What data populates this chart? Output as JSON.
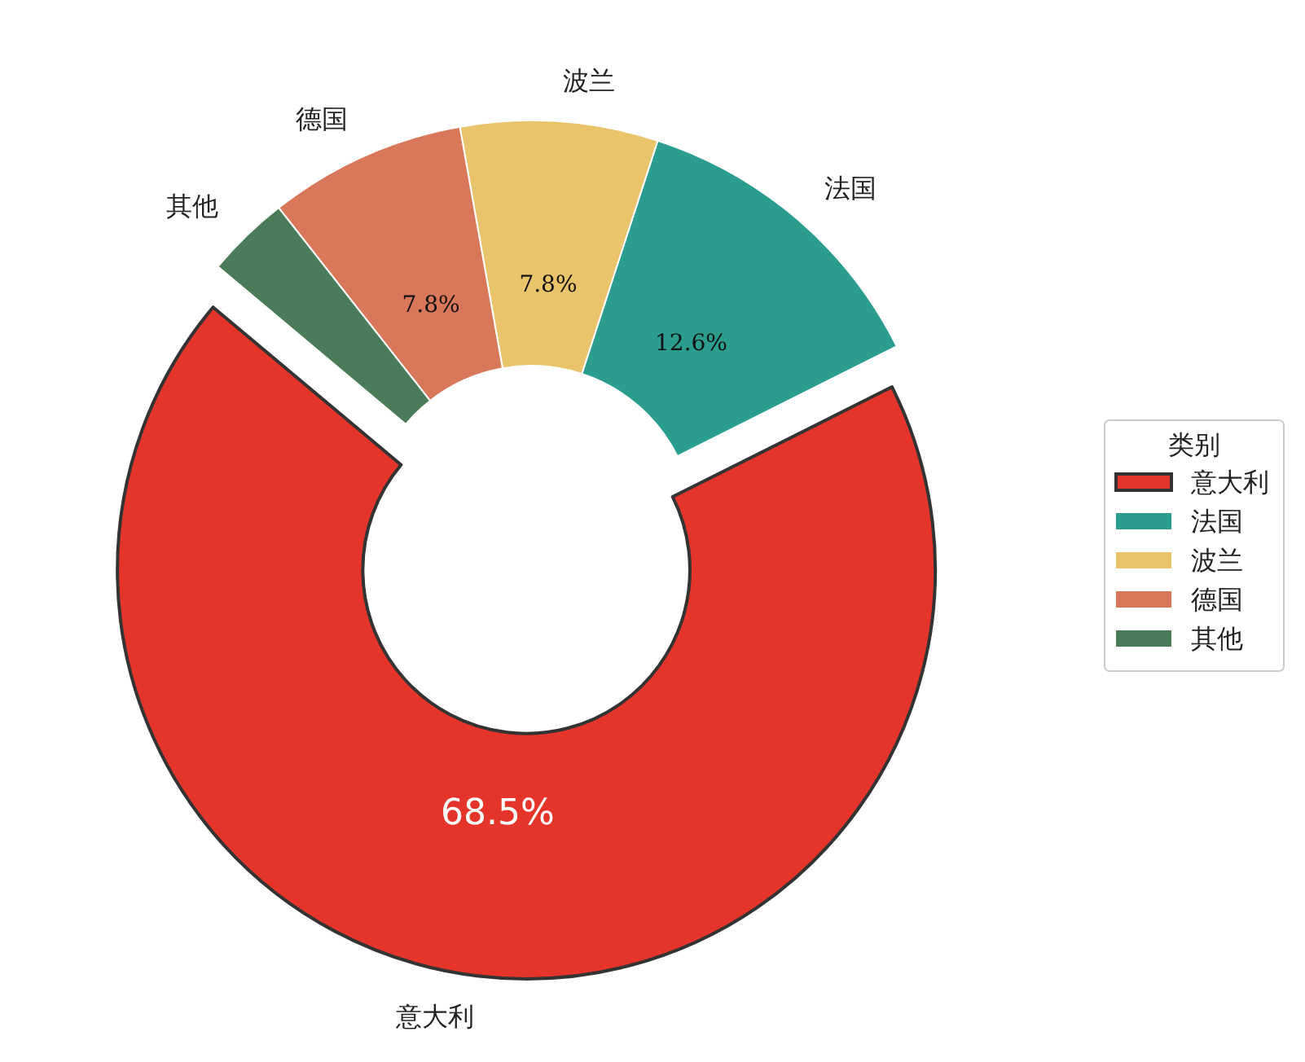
{
  "chart_data": {
    "type": "donut",
    "legend_title": "类别",
    "legend": "right",
    "categories": [
      "意大利",
      "法国",
      "波兰",
      "德国",
      "其他"
    ],
    "values": [
      68.5,
      12.6,
      7.8,
      7.8,
      3.3
    ],
    "colors": [
      "#e5352b",
      "#2a9d8f",
      "#e9c46a",
      "#d9775b",
      "#4a7c59"
    ],
    "value_labels": [
      "68.5%",
      "12.6%",
      "7.8%",
      "7.8%",
      null
    ]
  }
}
